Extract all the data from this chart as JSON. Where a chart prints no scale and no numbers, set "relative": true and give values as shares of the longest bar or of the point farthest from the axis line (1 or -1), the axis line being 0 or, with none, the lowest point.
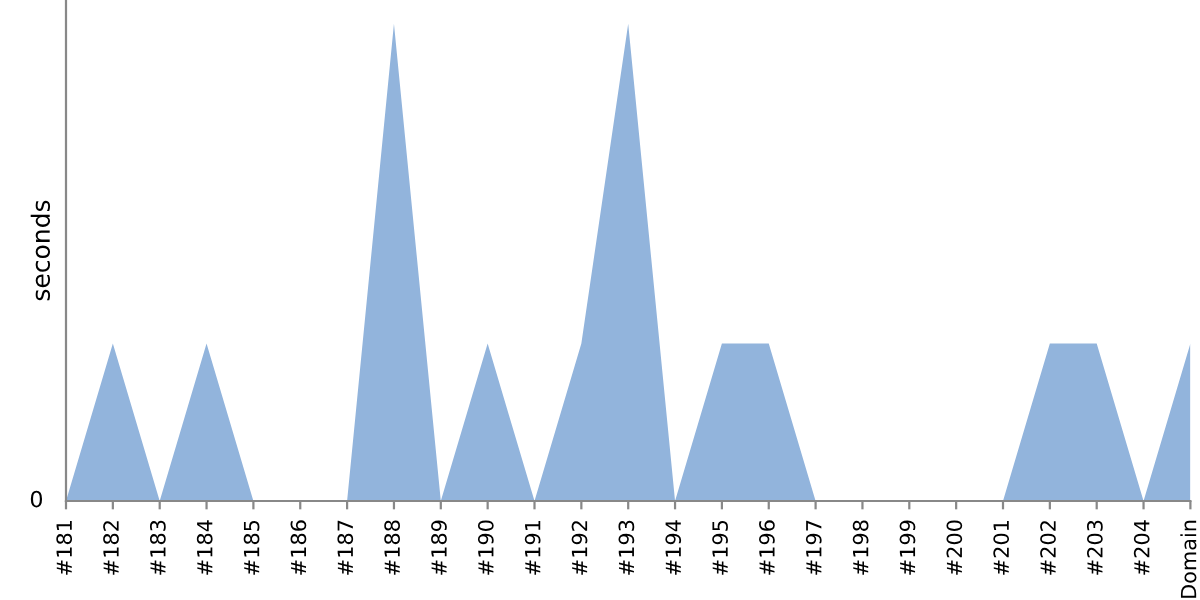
{
  "chart_data": {
    "type": "area",
    "ylabel": "seconds",
    "relative": true,
    "categories": [
      "#181",
      "#182",
      "#183",
      "#184",
      "#185",
      "#186",
      "#187",
      "#188",
      "#189",
      "#190",
      "#191",
      "#192",
      "#193",
      "#194",
      "#195",
      "#196",
      "#197",
      "#198",
      "#199",
      "#200",
      "#201",
      "#202",
      "#203",
      "#204",
      "Domain"
    ],
    "series": [
      {
        "color": "#92b4dc",
        "values": [
          0,
          0.33,
          0,
          0.33,
          0,
          0,
          0,
          1,
          0,
          0.33,
          0,
          0.33,
          1,
          0,
          0.33,
          0.33,
          0,
          0,
          0,
          0,
          0,
          0.33,
          0.33,
          0,
          0.33
        ]
      }
    ],
    "annotations": [
      "0"
    ],
    "grid": false,
    "legend": false
  }
}
